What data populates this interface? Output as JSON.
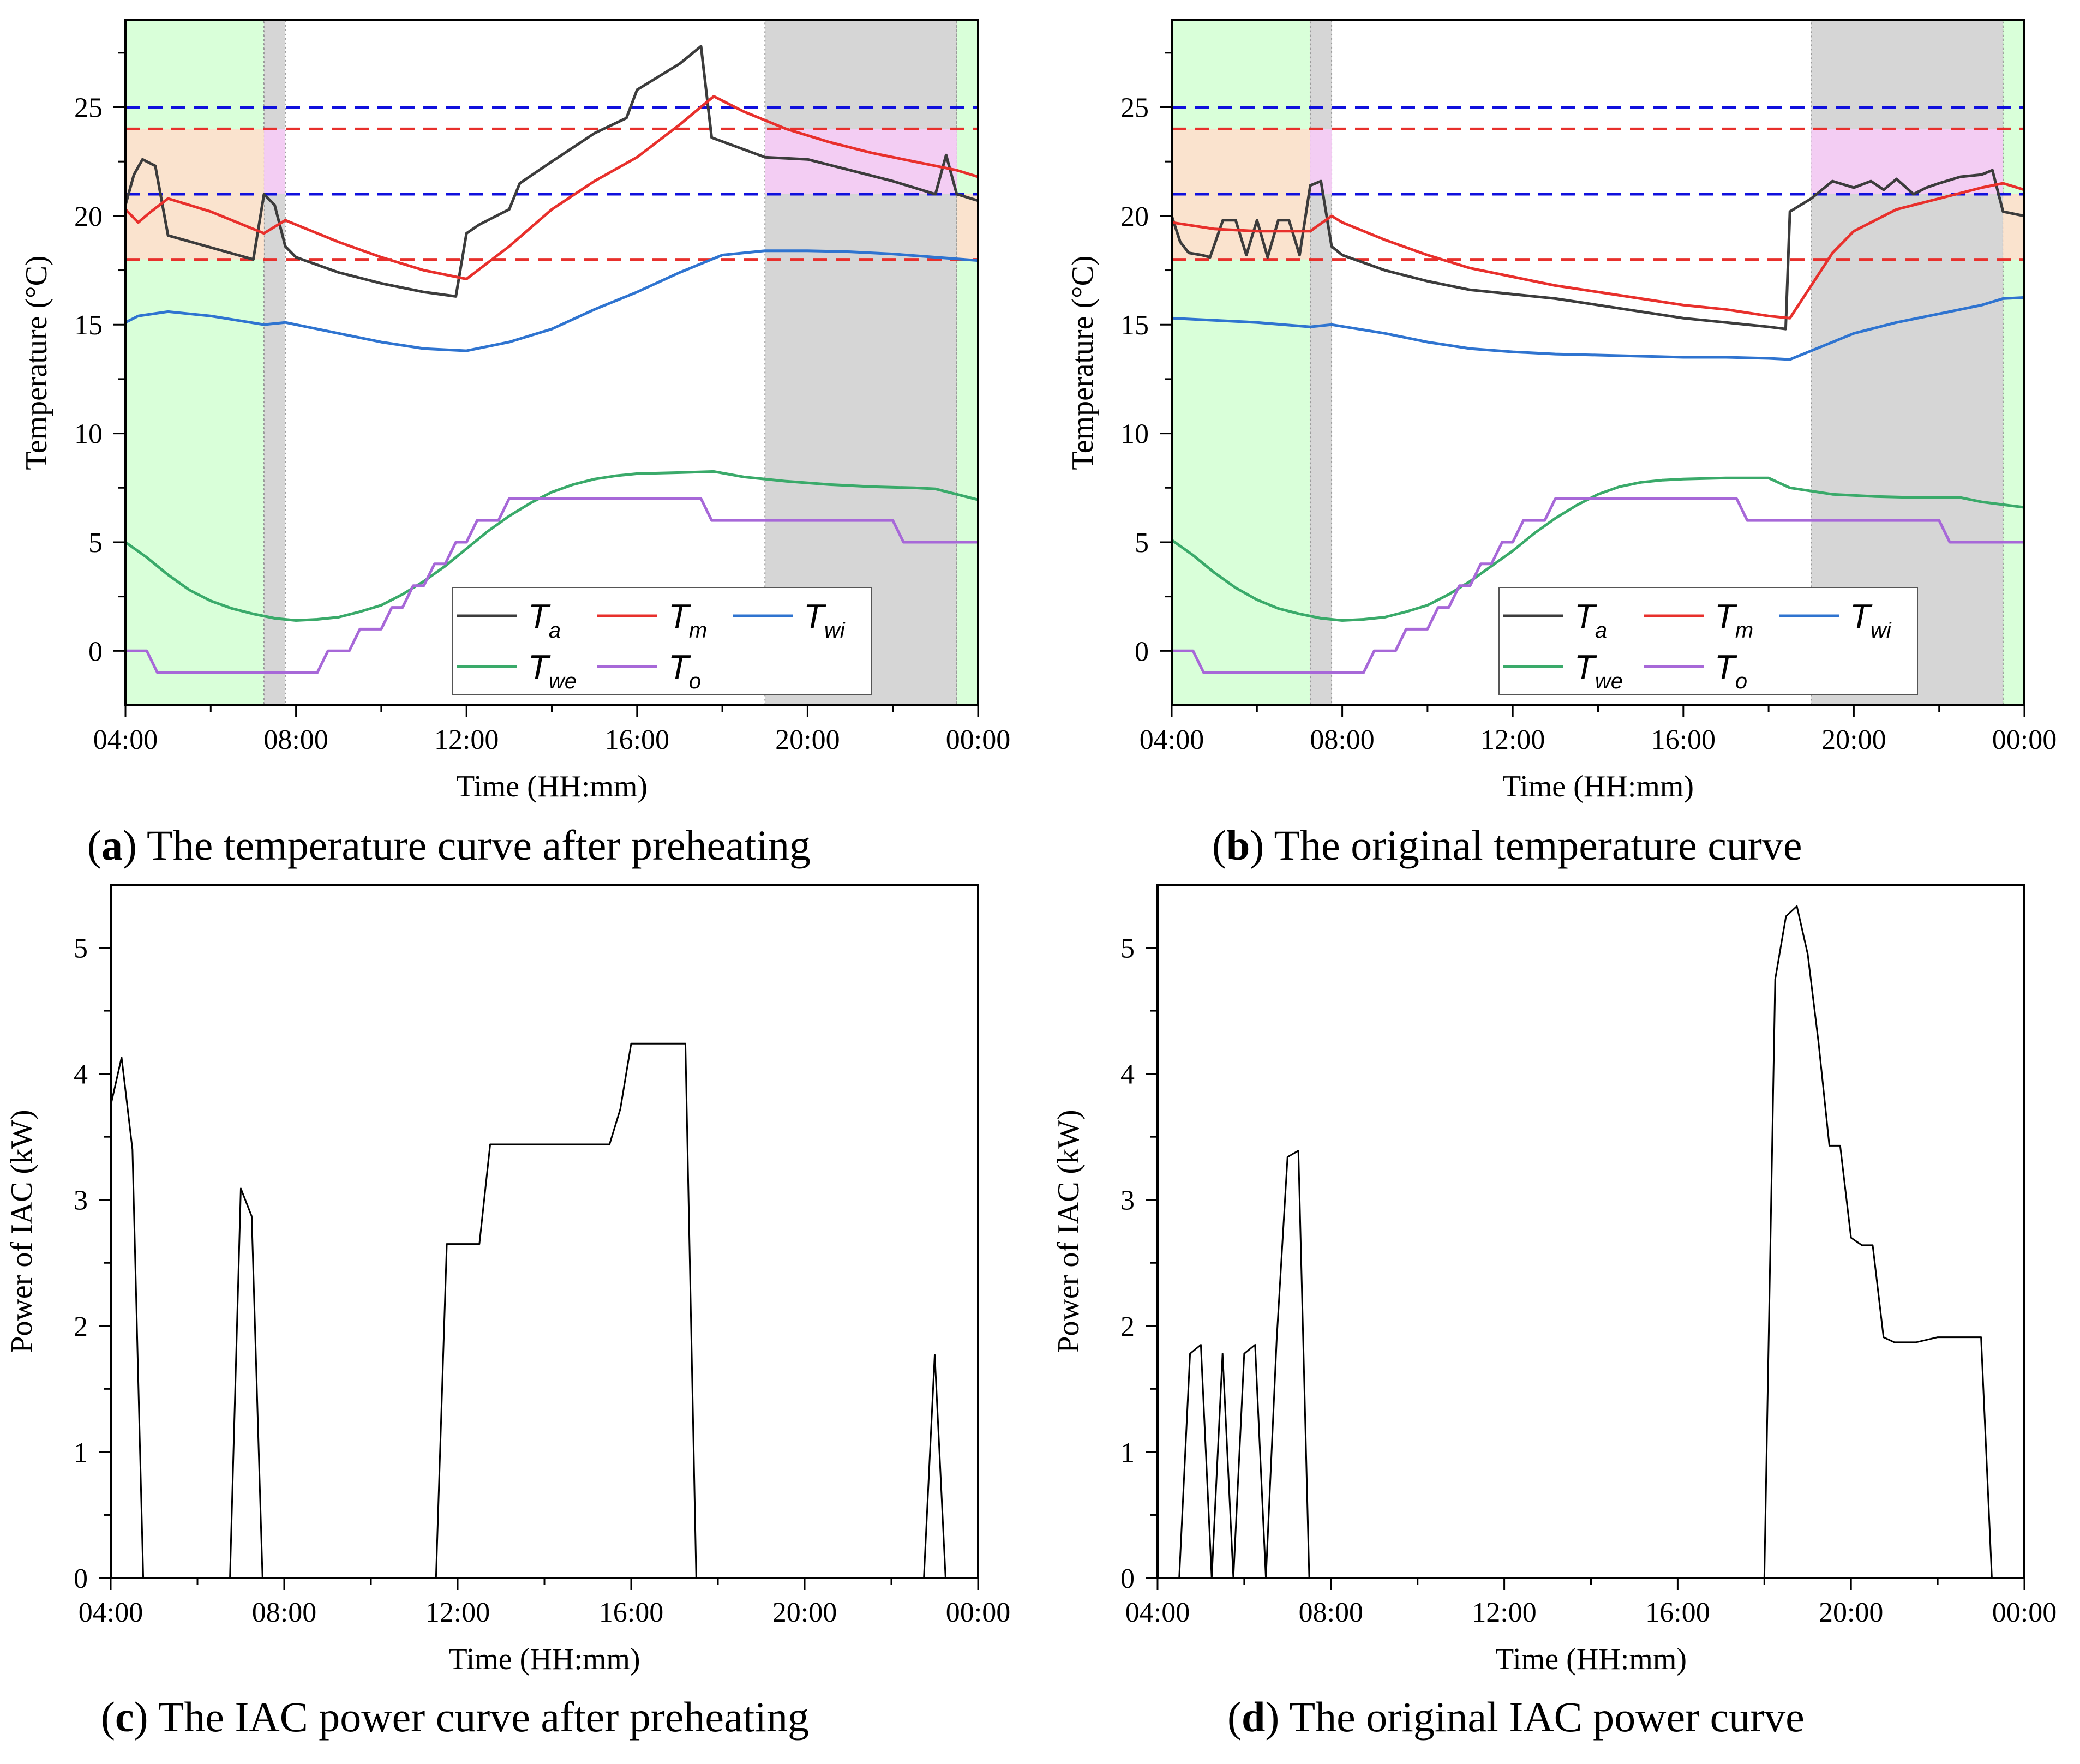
{
  "captions": [
    {
      "letter": "a",
      "text": " The temperature curve after preheating"
    },
    {
      "letter": "b",
      "text": " The original temperature curve"
    },
    {
      "letter": "c",
      "text": " The IAC power curve after preheating"
    },
    {
      "letter": "d",
      "text": " The original IAC power curve"
    }
  ],
  "colors": {
    "Ta": "#3c3c3c",
    "Tm": "#e8302c",
    "Twi": "#2f74d0",
    "Twe": "#3aaa6a",
    "To": "#a768d8",
    "upper_limit": "#1010dd",
    "lower_limit": "#e8302c",
    "band_green": "#ccffcc",
    "band_grey": "#c8c8c8",
    "band_pink": "#f6ccf6",
    "band_peach": "#fde0cc"
  },
  "chart_data": [
    {
      "id": "a",
      "type": "line",
      "title": "",
      "xlabel": "Time (HH:mm)",
      "ylabel": "Temperature (°C)",
      "xlim": [
        4,
        24
      ],
      "ylim": [
        -2.5,
        29
      ],
      "x_ticks": [
        "04:00",
        "08:00",
        "12:00",
        "16:00",
        "20:00",
        "00:00"
      ],
      "y_ticks": [
        0,
        5,
        10,
        15,
        20,
        25
      ],
      "legend": {
        "placement": "bottom-center",
        "entries": [
          {
            "key": "Ta",
            "sym": "T",
            "sub": "a"
          },
          {
            "key": "Tm",
            "sym": "T",
            "sub": "m"
          },
          {
            "key": "Twi",
            "sym": "T",
            "sub": "wi"
          },
          {
            "key": "Twe",
            "sym": "T",
            "sub": "we"
          },
          {
            "key": "To",
            "sym": "T",
            "sub": "o"
          }
        ]
      },
      "hlines": [
        {
          "y": 25,
          "color": "upper_limit"
        },
        {
          "y": 21,
          "color": "upper_limit"
        },
        {
          "y": 24,
          "color": "lower_limit"
        },
        {
          "y": 18,
          "color": "lower_limit"
        }
      ],
      "bands": [
        {
          "x0": 4.0,
          "x1": 7.25,
          "color": "band_green"
        },
        {
          "x0": 7.25,
          "x1": 7.75,
          "color": "band_grey"
        },
        {
          "x0": 19.0,
          "x1": 23.5,
          "color": "band_grey"
        },
        {
          "x0": 23.5,
          "x1": 24.0,
          "color": "band_green"
        }
      ],
      "inner_bands": [
        {
          "x0": 4.0,
          "x1": 7.25,
          "y0": 18,
          "y1": 24,
          "color": "band_peach"
        },
        {
          "x0": 7.25,
          "x1": 7.75,
          "y0": 21,
          "y1": 24,
          "color": "band_pink"
        },
        {
          "x0": 19.0,
          "x1": 23.5,
          "y0": 21,
          "y1": 24,
          "color": "band_pink"
        },
        {
          "x0": 23.5,
          "x1": 24.0,
          "y0": 18,
          "y1": 21,
          "color": "band_peach"
        }
      ],
      "series": [
        {
          "key": "Ta",
          "x": [
            4.0,
            4.2,
            4.4,
            4.7,
            5.0,
            7.0,
            7.25,
            7.5,
            7.75,
            8.0,
            9.0,
            10.0,
            11.0,
            11.75,
            12.0,
            12.3,
            13.0,
            13.25,
            14.0,
            15.0,
            15.75,
            16.0,
            17.0,
            17.5,
            17.75,
            19.0,
            20.0,
            21.0,
            22.0,
            23.0,
            23.25,
            23.5,
            24.0
          ],
          "y": [
            20.5,
            21.9,
            22.6,
            22.3,
            19.1,
            18.0,
            21.0,
            20.5,
            18.6,
            18.1,
            17.4,
            16.9,
            16.5,
            16.3,
            19.2,
            19.6,
            20.3,
            21.5,
            22.5,
            23.8,
            24.5,
            25.8,
            27.0,
            27.8,
            23.6,
            22.7,
            22.6,
            22.1,
            21.6,
            21.0,
            22.8,
            21.0,
            20.7
          ]
        },
        {
          "key": "Tm",
          "x": [
            4.0,
            4.3,
            4.6,
            5.0,
            6.0,
            7.25,
            7.75,
            8.0,
            9.0,
            10.0,
            11.0,
            12.0,
            13.0,
            14.0,
            15.0,
            16.0,
            17.0,
            17.8,
            18.5,
            19.5,
            20.5,
            21.5,
            22.5,
            23.5,
            24.0
          ],
          "y": [
            20.3,
            19.7,
            20.2,
            20.8,
            20.2,
            19.2,
            19.8,
            19.6,
            18.8,
            18.1,
            17.5,
            17.1,
            18.6,
            20.3,
            21.6,
            22.7,
            24.2,
            25.5,
            24.8,
            24.0,
            23.4,
            22.9,
            22.5,
            22.1,
            21.8
          ]
        },
        {
          "key": "Twi",
          "x": [
            4.0,
            4.3,
            5.0,
            6.0,
            7.25,
            7.75,
            9.0,
            10.0,
            11.0,
            12.0,
            13.0,
            14.0,
            15.0,
            16.0,
            17.0,
            18.0,
            19.0,
            20.0,
            21.0,
            22.0,
            23.0,
            24.0
          ],
          "y": [
            15.1,
            15.4,
            15.6,
            15.4,
            15.0,
            15.1,
            14.6,
            14.2,
            13.9,
            13.8,
            14.2,
            14.8,
            15.7,
            16.5,
            17.4,
            18.2,
            18.4,
            18.4,
            18.35,
            18.25,
            18.1,
            17.95
          ]
        },
        {
          "key": "Twe",
          "x": [
            4.0,
            4.5,
            5.0,
            5.5,
            6.0,
            6.5,
            7.0,
            7.5,
            8.0,
            8.5,
            9.0,
            9.5,
            10.0,
            10.5,
            11.0,
            11.5,
            12.0,
            12.5,
            13.0,
            13.5,
            14.0,
            14.5,
            15.0,
            15.5,
            16.0,
            17.0,
            17.8,
            18.5,
            19.5,
            20.5,
            21.5,
            22.5,
            23.0,
            24.0
          ],
          "y": [
            5.0,
            4.3,
            3.5,
            2.8,
            2.3,
            1.95,
            1.7,
            1.5,
            1.4,
            1.45,
            1.55,
            1.8,
            2.1,
            2.6,
            3.2,
            3.9,
            4.7,
            5.5,
            6.2,
            6.8,
            7.3,
            7.65,
            7.9,
            8.05,
            8.15,
            8.2,
            8.25,
            8.0,
            7.8,
            7.65,
            7.55,
            7.5,
            7.45,
            6.95
          ]
        },
        {
          "key": "To",
          "x": [
            4.0,
            4.5,
            4.75,
            8.5,
            8.75,
            9.25,
            9.5,
            10.0,
            10.25,
            10.5,
            10.75,
            11.0,
            11.25,
            11.5,
            11.75,
            12.0,
            12.25,
            12.75,
            13.0,
            14.0,
            17.5,
            17.75,
            22.0,
            22.25,
            24.0
          ],
          "y": [
            0,
            0,
            -1,
            -1,
            0,
            0,
            1,
            1,
            2,
            2,
            3,
            3,
            4,
            4,
            5,
            5,
            6,
            6,
            7,
            7,
            7,
            6,
            6,
            5,
            5
          ]
        }
      ]
    },
    {
      "id": "b",
      "type": "line",
      "title": "",
      "xlabel": "Time (HH:mm)",
      "ylabel": "Temperature (°C)",
      "xlim": [
        4,
        24
      ],
      "ylim": [
        -2.5,
        29
      ],
      "x_ticks": [
        "04:00",
        "08:00",
        "12:00",
        "16:00",
        "20:00",
        "00:00"
      ],
      "y_ticks": [
        0,
        5,
        10,
        15,
        20,
        25
      ],
      "legend": {
        "placement": "bottom-center",
        "entries": [
          {
            "key": "Ta",
            "sym": "T",
            "sub": "a"
          },
          {
            "key": "Tm",
            "sym": "T",
            "sub": "m"
          },
          {
            "key": "Twi",
            "sym": "T",
            "sub": "wi"
          },
          {
            "key": "Twe",
            "sym": "T",
            "sub": "we"
          },
          {
            "key": "To",
            "sym": "T",
            "sub": "o"
          }
        ]
      },
      "hlines": [
        {
          "y": 25,
          "color": "upper_limit"
        },
        {
          "y": 21,
          "color": "upper_limit"
        },
        {
          "y": 24,
          "color": "lower_limit"
        },
        {
          "y": 18,
          "color": "lower_limit"
        }
      ],
      "bands": [
        {
          "x0": 4.0,
          "x1": 7.25,
          "color": "band_green"
        },
        {
          "x0": 7.25,
          "x1": 7.75,
          "color": "band_grey"
        },
        {
          "x0": 19.0,
          "x1": 23.5,
          "color": "band_grey"
        },
        {
          "x0": 23.5,
          "x1": 24.0,
          "color": "band_green"
        }
      ],
      "inner_bands": [
        {
          "x0": 4.0,
          "x1": 7.25,
          "y0": 18,
          "y1": 24,
          "color": "band_peach"
        },
        {
          "x0": 7.25,
          "x1": 7.75,
          "y0": 21,
          "y1": 24,
          "color": "band_pink"
        },
        {
          "x0": 19.0,
          "x1": 23.5,
          "y0": 21,
          "y1": 24,
          "color": "band_pink"
        },
        {
          "x0": 23.5,
          "x1": 24.0,
          "y0": 18,
          "y1": 21,
          "color": "band_peach"
        }
      ],
      "series": [
        {
          "key": "Ta",
          "x": [
            4.0,
            4.2,
            4.4,
            4.7,
            4.9,
            5.2,
            5.5,
            5.75,
            6.0,
            6.25,
            6.5,
            6.75,
            7.0,
            7.25,
            7.5,
            7.75,
            8.0,
            9.0,
            10.0,
            11.0,
            12.0,
            13.0,
            14.0,
            15.0,
            16.0,
            17.0,
            18.0,
            18.4,
            18.5,
            19.0,
            19.5,
            20.0,
            20.4,
            20.7,
            21.0,
            21.4,
            21.7,
            22.0,
            22.5,
            23.0,
            23.25,
            23.5,
            24.0
          ],
          "y": [
            20.0,
            18.8,
            18.3,
            18.2,
            18.1,
            19.8,
            19.8,
            18.2,
            19.8,
            18.1,
            19.8,
            19.8,
            18.2,
            21.4,
            21.6,
            18.6,
            18.2,
            17.5,
            17.0,
            16.6,
            16.4,
            16.2,
            15.9,
            15.6,
            15.3,
            15.1,
            14.9,
            14.8,
            20.2,
            20.8,
            21.6,
            21.3,
            21.6,
            21.2,
            21.7,
            21.0,
            21.3,
            21.5,
            21.8,
            21.9,
            22.1,
            20.2,
            20.0
          ]
        },
        {
          "key": "Tm",
          "x": [
            4.0,
            5.0,
            6.0,
            7.25,
            7.75,
            8.0,
            9.0,
            10.0,
            11.0,
            12.0,
            13.0,
            14.0,
            15.0,
            16.0,
            17.0,
            18.0,
            18.5,
            19.0,
            19.5,
            20.0,
            21.0,
            22.0,
            23.0,
            23.5,
            24.0
          ],
          "y": [
            19.7,
            19.4,
            19.3,
            19.3,
            20.0,
            19.7,
            18.9,
            18.2,
            17.6,
            17.2,
            16.8,
            16.5,
            16.2,
            15.9,
            15.7,
            15.4,
            15.3,
            16.8,
            18.3,
            19.3,
            20.3,
            20.8,
            21.3,
            21.5,
            21.2
          ]
        },
        {
          "key": "Twi",
          "x": [
            4.0,
            5.0,
            6.0,
            7.25,
            7.75,
            9.0,
            10.0,
            11.0,
            12.0,
            13.0,
            14.0,
            15.0,
            16.0,
            17.0,
            18.0,
            18.5,
            19.0,
            20.0,
            21.0,
            22.0,
            23.0,
            23.5,
            24.0
          ],
          "y": [
            15.3,
            15.2,
            15.1,
            14.9,
            15.0,
            14.6,
            14.2,
            13.9,
            13.75,
            13.65,
            13.6,
            13.55,
            13.5,
            13.5,
            13.45,
            13.4,
            13.8,
            14.6,
            15.1,
            15.5,
            15.9,
            16.2,
            16.25
          ]
        },
        {
          "key": "Twe",
          "x": [
            4.0,
            4.5,
            5.0,
            5.5,
            6.0,
            6.5,
            7.0,
            7.5,
            8.0,
            8.5,
            9.0,
            9.5,
            10.0,
            10.5,
            11.0,
            11.5,
            12.0,
            12.5,
            13.0,
            13.5,
            14.0,
            14.5,
            15.0,
            15.5,
            16.0,
            17.0,
            18.0,
            18.5,
            19.5,
            20.5,
            21.5,
            22.5,
            23.0,
            24.0
          ],
          "y": [
            5.1,
            4.4,
            3.6,
            2.9,
            2.35,
            1.95,
            1.7,
            1.5,
            1.4,
            1.45,
            1.55,
            1.8,
            2.1,
            2.6,
            3.2,
            3.9,
            4.6,
            5.4,
            6.1,
            6.7,
            7.2,
            7.55,
            7.75,
            7.85,
            7.9,
            7.95,
            7.95,
            7.5,
            7.2,
            7.1,
            7.05,
            7.05,
            6.85,
            6.6
          ]
        },
        {
          "key": "To",
          "x": [
            4.0,
            4.5,
            4.75,
            8.5,
            8.75,
            9.25,
            9.5,
            10.0,
            10.25,
            10.5,
            10.75,
            11.0,
            11.25,
            11.5,
            11.75,
            12.0,
            12.25,
            12.75,
            13.0,
            14.0,
            17.25,
            17.5,
            22.0,
            22.25,
            24.0
          ],
          "y": [
            0,
            0,
            -1,
            -1,
            0,
            0,
            1,
            1,
            2,
            2,
            3,
            3,
            4,
            4,
            5,
            5,
            6,
            6,
            7,
            7,
            7,
            6,
            6,
            5,
            5
          ]
        }
      ]
    },
    {
      "id": "c",
      "type": "line",
      "title": "",
      "xlabel": "Time (HH:mm)",
      "ylabel": "Power of IAC (kW)",
      "xlim": [
        4,
        24
      ],
      "ylim": [
        0,
        5.5
      ],
      "x_ticks": [
        "04:00",
        "08:00",
        "12:00",
        "16:00",
        "20:00",
        "00:00"
      ],
      "y_ticks": [
        0,
        1,
        2,
        3,
        4,
        5
      ],
      "series": [
        {
          "key": "P",
          "x": [
            4.0,
            4.25,
            4.5,
            4.75,
            6.75,
            7.0,
            7.25,
            7.5,
            11.5,
            11.75,
            12.5,
            12.75,
            15.5,
            15.75,
            16.0,
            17.25,
            17.5,
            22.75,
            23.0,
            23.25,
            24.0
          ],
          "y": [
            3.75,
            4.13,
            3.4,
            0,
            0,
            3.09,
            2.87,
            0,
            0,
            2.65,
            2.65,
            3.44,
            3.44,
            3.72,
            4.24,
            4.24,
            0,
            0,
            1.77,
            0,
            0
          ]
        }
      ]
    },
    {
      "id": "d",
      "type": "line",
      "title": "",
      "xlabel": "Time (HH:mm)",
      "ylabel": "Power of IAC (kW)",
      "xlim": [
        4,
        24
      ],
      "ylim": [
        0,
        5.5
      ],
      "x_ticks": [
        "04:00",
        "08:00",
        "12:00",
        "16:00",
        "20:00",
        "00:00"
      ],
      "y_ticks": [
        0,
        1,
        2,
        3,
        4,
        5
      ],
      "series": [
        {
          "key": "P",
          "x": [
            4.0,
            4.5,
            4.75,
            5.0,
            5.25,
            5.5,
            5.75,
            6.0,
            6.25,
            6.5,
            6.75,
            7.0,
            7.25,
            7.5,
            18.0,
            18.25,
            18.5,
            18.75,
            19.0,
            19.25,
            19.5,
            19.75,
            20.0,
            20.25,
            20.5,
            20.75,
            21.0,
            21.5,
            22.0,
            22.5,
            23.0,
            23.25,
            24.0
          ],
          "y": [
            0,
            0,
            1.78,
            1.85,
            0,
            1.78,
            0,
            1.78,
            1.85,
            0,
            1.9,
            3.34,
            3.39,
            0,
            0,
            4.75,
            5.25,
            5.33,
            4.95,
            4.25,
            3.43,
            3.43,
            2.7,
            2.64,
            2.64,
            1.91,
            1.87,
            1.87,
            1.91,
            1.91,
            1.91,
            0,
            0
          ]
        }
      ]
    }
  ]
}
